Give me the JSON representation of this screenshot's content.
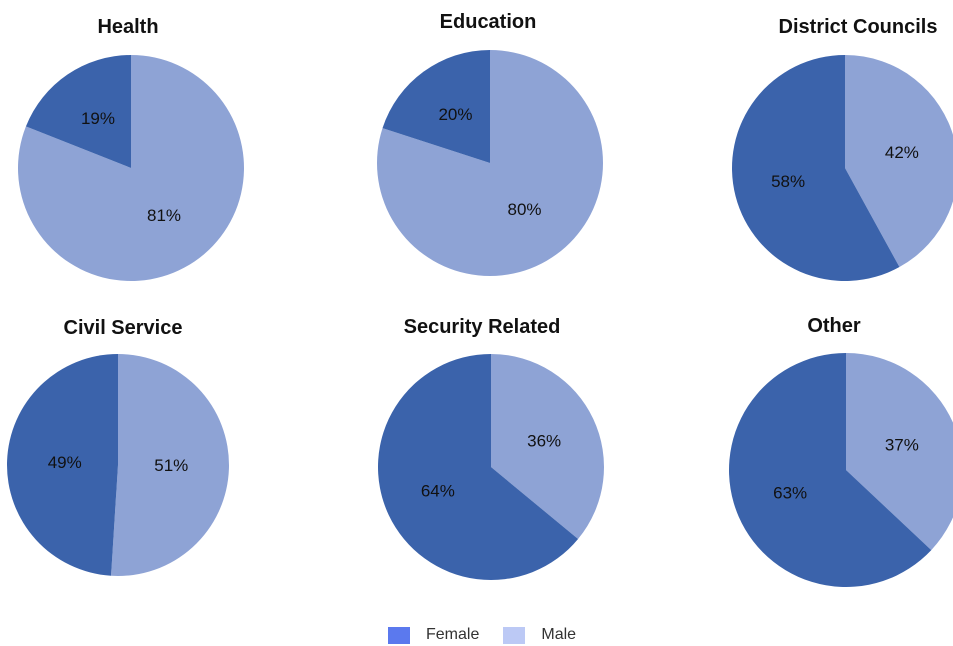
{
  "chart_data": [
    {
      "type": "pie",
      "title": "Health",
      "categories": [
        "Female",
        "Male"
      ],
      "values": [
        19,
        81
      ],
      "labels": [
        "19%",
        "81%"
      ]
    },
    {
      "type": "pie",
      "title": "Education",
      "categories": [
        "Female",
        "Male"
      ],
      "values": [
        20,
        80
      ],
      "labels": [
        "20%",
        "80%"
      ]
    },
    {
      "type": "pie",
      "title": "District Councils",
      "categories": [
        "Female",
        "Male"
      ],
      "values": [
        58,
        42
      ],
      "labels": [
        "58%",
        "42%"
      ]
    },
    {
      "type": "pie",
      "title": "Civil Service",
      "categories": [
        "Female",
        "Male"
      ],
      "values": [
        49,
        51
      ],
      "labels": [
        "49%",
        "51%"
      ]
    },
    {
      "type": "pie",
      "title": "Security Related",
      "categories": [
        "Female",
        "Male"
      ],
      "values": [
        64,
        36
      ],
      "labels": [
        "64%",
        "36%"
      ]
    },
    {
      "type": "pie",
      "title": "Other",
      "categories": [
        "Female",
        "Male"
      ],
      "values": [
        63,
        37
      ],
      "labels": [
        "63%",
        "37%"
      ]
    }
  ],
  "slice_colors": {
    "Female": "#3b63ab",
    "Male": "#8ea3d5"
  },
  "legend": {
    "items": [
      {
        "label": "Female",
        "color": "#5b79ee"
      },
      {
        "label": "Male",
        "color": "#bcc9f5"
      }
    ],
    "position": "bottom-center"
  }
}
